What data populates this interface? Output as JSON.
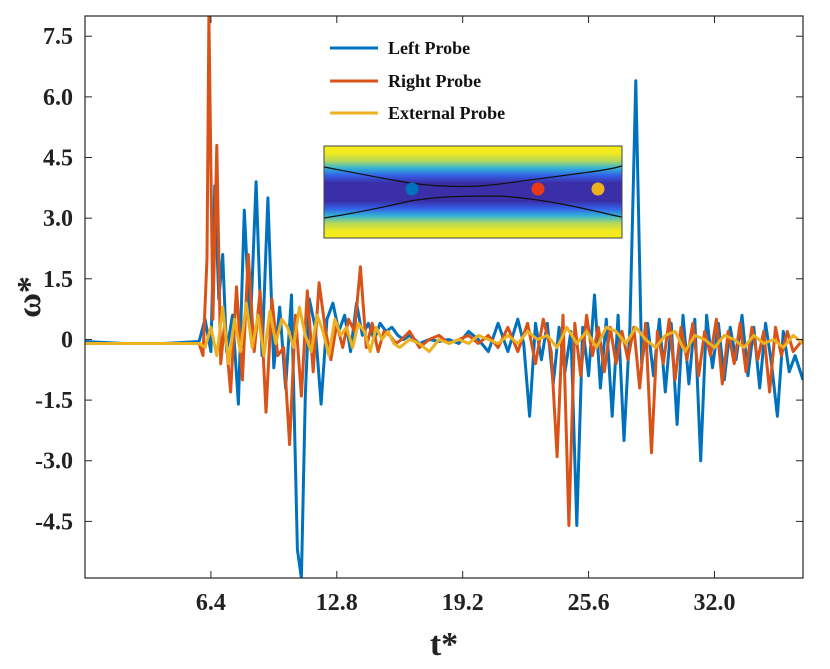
{
  "chart_data": {
    "type": "line",
    "title": "",
    "xlabel": "t*",
    "ylabel": "ω*",
    "xlim": [
      0,
      36.5
    ],
    "ylim": [
      -5.9,
      8.0
    ],
    "xticks": [
      6.4,
      12.8,
      19.2,
      25.6,
      32.0
    ],
    "xtick_labels": [
      "6.4",
      "12.8",
      "19.2",
      "25.6",
      "32.0"
    ],
    "yticks": [
      7.5,
      6.0,
      4.5,
      3.0,
      1.5,
      0,
      -1.5,
      -3.0,
      -4.5
    ],
    "ytick_labels": [
      "7.5",
      "6.0",
      "4.5",
      "3.0",
      "1.5",
      "0",
      "-1.5",
      "-3.0",
      "-4.5"
    ],
    "grid": false,
    "legend_position": "top-center",
    "series": [
      {
        "name": "Left Probe",
        "color": "#0072BD",
        "x": [
          0,
          2,
          4,
          5.8,
          6.1,
          6.4,
          6.6,
          6.8,
          7.0,
          7.2,
          7.5,
          7.8,
          8.1,
          8.4,
          8.7,
          9.0,
          9.3,
          9.6,
          9.9,
          10.2,
          10.5,
          10.8,
          11.0,
          11.2,
          11.4,
          11.7,
          12.0,
          12.3,
          12.6,
          12.9,
          13.2,
          13.5,
          13.8,
          14.1,
          14.4,
          14.7,
          15.0,
          15.3,
          15.6,
          15.9,
          16.2,
          16.5,
          17.0,
          17.5,
          18.0,
          18.5,
          19.0,
          19.5,
          20.0,
          20.5,
          21.0,
          21.5,
          22.0,
          22.3,
          22.6,
          22.9,
          23.2,
          23.5,
          23.8,
          24.1,
          24.4,
          24.7,
          25.0,
          25.3,
          25.6,
          25.9,
          26.2,
          26.5,
          26.8,
          27.1,
          27.4,
          27.7,
          28.0,
          28.3,
          28.6,
          28.9,
          29.2,
          29.5,
          29.8,
          30.1,
          30.4,
          30.7,
          31.0,
          31.3,
          31.6,
          31.9,
          32.2,
          32.5,
          32.8,
          33.1,
          33.4,
          33.7,
          34.0,
          34.3,
          34.6,
          34.9,
          35.2,
          35.5,
          35.8,
          36.1,
          36.5
        ],
        "y": [
          -0.05,
          -0.1,
          -0.1,
          -0.05,
          0.5,
          -0.3,
          3.8,
          1.0,
          2.1,
          -0.3,
          0.6,
          -1.6,
          3.2,
          0.2,
          3.9,
          -0.4,
          3.5,
          -0.7,
          0.8,
          -1.2,
          1.1,
          -5.2,
          -5.9,
          -1.4,
          1.0,
          0.3,
          -1.6,
          0.5,
          0.9,
          0.2,
          0.6,
          -0.3,
          0.9,
          0.1,
          0.4,
          0.0,
          0.4,
          0.2,
          0.3,
          0.1,
          0.0,
          0.1,
          -0.1,
          0.0,
          -0.05,
          0.0,
          -0.1,
          0.2,
          0.0,
          -0.3,
          0.4,
          -0.3,
          0.5,
          -0.1,
          -1.9,
          0.4,
          -0.5,
          0.4,
          -1.1,
          0.3,
          -0.8,
          0.2,
          -4.6,
          0.3,
          -0.9,
          1.1,
          -1.2,
          0.5,
          -1.9,
          0.6,
          -2.5,
          0.3,
          6.4,
          -0.6,
          0.4,
          -0.9,
          0.5,
          -1.3,
          0.4,
          -2.1,
          0.6,
          -1.1,
          0.5,
          -3.0,
          0.6,
          -0.7,
          0.4,
          -1.0,
          0.3,
          -0.5,
          0.6,
          -0.9,
          0.3,
          -1.2,
          0.4,
          -0.6,
          -1.9,
          0.2,
          -0.8,
          -0.4,
          -1.0
        ]
      },
      {
        "name": "Right Probe",
        "color": "#D95319",
        "x": [
          0,
          2,
          4,
          5.8,
          6.0,
          6.2,
          6.3,
          6.5,
          6.7,
          6.9,
          7.1,
          7.4,
          7.7,
          8.0,
          8.3,
          8.6,
          8.9,
          9.2,
          9.5,
          9.8,
          10.1,
          10.4,
          10.7,
          11.0,
          11.3,
          11.6,
          11.9,
          12.2,
          12.5,
          12.8,
          13.1,
          13.4,
          13.7,
          14.0,
          14.3,
          14.6,
          14.9,
          15.2,
          15.5,
          15.8,
          16.1,
          16.5,
          17.0,
          17.5,
          18.0,
          18.5,
          19.0,
          19.5,
          20.0,
          20.5,
          21.0,
          21.5,
          22.0,
          22.5,
          22.9,
          23.3,
          23.7,
          24.0,
          24.3,
          24.6,
          24.9,
          25.2,
          25.5,
          25.8,
          26.1,
          26.4,
          26.7,
          27.0,
          27.3,
          27.6,
          27.9,
          28.2,
          28.5,
          28.8,
          29.1,
          29.4,
          29.7,
          30.0,
          30.3,
          30.6,
          30.9,
          31.2,
          31.5,
          31.8,
          32.1,
          32.4,
          32.7,
          33.0,
          33.3,
          33.6,
          33.9,
          34.2,
          34.5,
          34.8,
          35.1,
          35.4,
          35.7,
          36.0,
          36.5
        ],
        "y": [
          -0.1,
          -0.1,
          -0.1,
          -0.1,
          -0.4,
          2.0,
          8.0,
          0.5,
          4.8,
          -0.6,
          0.4,
          -1.3,
          1.3,
          -1.0,
          2.1,
          -0.3,
          1.2,
          -1.8,
          1.0,
          -0.4,
          -0.2,
          -2.6,
          0.6,
          -1.4,
          1.2,
          -0.8,
          1.4,
          0.3,
          -0.5,
          0.4,
          -0.2,
          0.5,
          0.2,
          1.8,
          -0.2,
          0.4,
          -0.3,
          0.2,
          0.1,
          -0.1,
          0.0,
          0.2,
          -0.2,
          0.0,
          0.1,
          -0.1,
          0.0,
          0.1,
          -0.1,
          0.1,
          -0.2,
          0.3,
          -0.3,
          0.4,
          -0.6,
          0.5,
          -0.3,
          -2.9,
          0.6,
          -4.6,
          0.4,
          -0.9,
          0.6,
          -0.4,
          0.3,
          -0.8,
          0.3,
          -0.6,
          0.2,
          -0.5,
          0.3,
          -1.2,
          0.4,
          -2.8,
          0.2,
          -0.6,
          0.5,
          -1.0,
          0.3,
          -0.5,
          0.4,
          -0.9,
          0.2,
          -0.4,
          0.5,
          -1.1,
          0.2,
          -0.6,
          0.4,
          -0.8,
          0.3,
          -0.5,
          0.2,
          -1.3,
          0.3,
          -0.4,
          0.2,
          -0.3,
          0.0
        ]
      },
      {
        "name": "External Probe",
        "color": "#EDB120",
        "x": [
          0,
          2,
          4,
          5.8,
          6.1,
          6.4,
          6.7,
          7.0,
          7.3,
          7.6,
          7.9,
          8.2,
          8.5,
          8.8,
          9.1,
          9.4,
          9.7,
          10.0,
          10.3,
          10.6,
          10.9,
          11.2,
          11.5,
          11.8,
          12.1,
          12.4,
          12.7,
          13.0,
          13.3,
          13.6,
          13.9,
          14.2,
          14.5,
          14.8,
          15.1,
          15.4,
          15.7,
          16.0,
          16.5,
          17.0,
          17.5,
          18.0,
          18.5,
          19.0,
          19.5,
          20.0,
          20.5,
          21.0,
          21.5,
          22.0,
          22.5,
          23.0,
          23.5,
          24.0,
          24.5,
          25.0,
          25.5,
          26.0,
          26.5,
          27.0,
          27.5,
          28.0,
          28.5,
          29.0,
          29.5,
          30.0,
          30.5,
          31.0,
          31.5,
          32.0,
          32.5,
          33.0,
          33.5,
          34.0,
          34.5,
          35.0,
          35.5,
          36.0,
          36.5
        ],
        "y": [
          -0.1,
          -0.1,
          -0.1,
          -0.1,
          -0.2,
          0.3,
          -0.4,
          0.8,
          -0.6,
          0.5,
          -0.3,
          0.9,
          -0.2,
          0.6,
          -0.4,
          0.7,
          -0.1,
          0.5,
          0.3,
          -0.2,
          0.8,
          0.1,
          -0.3,
          0.6,
          0.2,
          -0.4,
          0.5,
          0.1,
          0.3,
          -0.2,
          0.4,
          0.2,
          -0.3,
          0.3,
          0.0,
          0.2,
          -0.1,
          -0.2,
          0.0,
          -0.1,
          -0.3,
          0.0,
          -0.1,
          0.0,
          -0.1,
          0.1,
          0.0,
          -0.1,
          0.1,
          -0.1,
          0.2,
          0.0,
          0.1,
          -0.2,
          0.3,
          -0.1,
          0.2,
          -0.2,
          0.3,
          0.2,
          -0.1,
          0.3,
          0.0,
          -0.2,
          0.1,
          0.2,
          -0.3,
          0.1,
          0.0,
          -0.2,
          0.1,
          0.0,
          -0.2,
          0.1,
          -0.1,
          0.0,
          -0.2,
          0.1,
          -0.1
        ]
      }
    ],
    "inset": {
      "description_visible": false,
      "probe_markers": [
        {
          "name": "Left Probe",
          "color": "#0072BD"
        },
        {
          "name": "Right Probe",
          "color": "#D95319"
        },
        {
          "name": "External Probe",
          "color": "#EDB120"
        }
      ]
    }
  }
}
